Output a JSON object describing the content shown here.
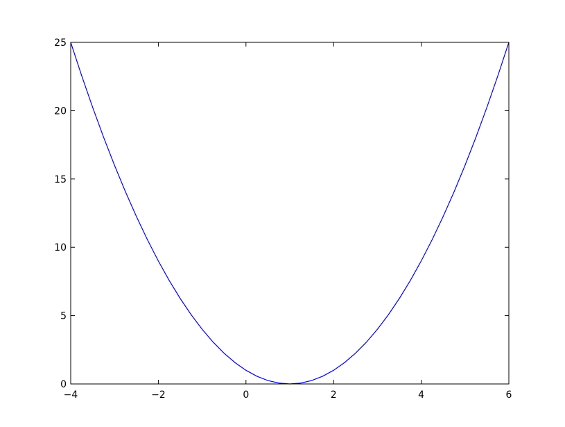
{
  "chart_data": {
    "type": "line",
    "x": [
      -4,
      -3.75,
      -3.5,
      -3.25,
      -3,
      -2.75,
      -2.5,
      -2.25,
      -2,
      -1.75,
      -1.5,
      -1.25,
      -1,
      -0.75,
      -0.5,
      -0.25,
      0,
      0.25,
      0.5,
      0.75,
      1,
      1.25,
      1.5,
      1.75,
      2,
      2.25,
      2.5,
      2.75,
      3,
      3.25,
      3.5,
      3.75,
      4,
      4.25,
      4.5,
      4.75,
      5,
      5.25,
      5.5,
      5.75,
      6
    ],
    "series": [
      {
        "color": "#0000ff",
        "values": [
          25,
          22.5625,
          20.25,
          18.0625,
          16,
          14.0625,
          12.25,
          10.5625,
          9,
          7.5625,
          6.25,
          5.0625,
          4,
          3.0625,
          2.25,
          1.5625,
          1,
          0.5625,
          0.25,
          0.0625,
          0,
          0.0625,
          0.25,
          0.5625,
          1,
          1.5625,
          2.25,
          3.0625,
          4,
          5.0625,
          6.25,
          7.5625,
          9,
          10.5625,
          12.25,
          14.0625,
          16,
          18.0625,
          20.25,
          22.5625,
          25
        ]
      }
    ],
    "xlim": [
      -4,
      6
    ],
    "xticks": [
      {
        "value": -4,
        "label": "−4"
      },
      {
        "value": -2,
        "label": "−2"
      },
      0,
      2,
      4,
      6
    ],
    "ylim": [
      0,
      25
    ],
    "yticks": [
      0,
      5,
      10,
      15,
      20,
      25
    ],
    "grid": false
  }
}
